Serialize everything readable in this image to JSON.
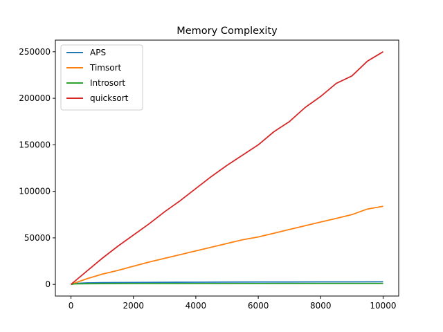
{
  "chart_data": {
    "type": "line",
    "title": "Memory Complexity",
    "xlabel": "",
    "ylabel": "",
    "xlim": [
      -500,
      10500
    ],
    "ylim": [
      -12500,
      262500
    ],
    "xticks": [
      0,
      2000,
      4000,
      6000,
      8000,
      10000
    ],
    "xtick_labels": [
      "0",
      "2000",
      "4000",
      "6000",
      "8000",
      "10000"
    ],
    "yticks": [
      0,
      50000,
      100000,
      150000,
      200000,
      250000
    ],
    "ytick_labels": [
      "0",
      "50000",
      "100000",
      "150000",
      "200000",
      "250000"
    ],
    "grid": false,
    "legend_position": "upper-left",
    "series": [
      {
        "name": "APS",
        "color": "#1f77b4",
        "x": [
          0,
          100,
          200,
          500,
          1000,
          2000,
          3000,
          4000,
          5000,
          6000,
          7000,
          8000,
          9000,
          10000
        ],
        "y": [
          0,
          800,
          1200,
          1600,
          1900,
          2100,
          2300,
          2400,
          2500,
          2600,
          2600,
          2700,
          2700,
          2800
        ]
      },
      {
        "name": "Timsort",
        "color": "#ff7f0e",
        "x": [
          0,
          500,
          1000,
          1500,
          2000,
          2500,
          3000,
          3500,
          4000,
          4500,
          5000,
          5500,
          6000,
          6500,
          7000,
          7500,
          8000,
          8500,
          9000,
          9500,
          10000
        ],
        "y": [
          0,
          6000,
          11000,
          15000,
          19500,
          24000,
          28000,
          32000,
          36000,
          40000,
          44000,
          48000,
          51000,
          55000,
          59000,
          63000,
          67000,
          71000,
          75000,
          81000,
          84000
        ]
      },
      {
        "name": "Introsort",
        "color": "#2ca02c",
        "x": [
          0,
          100,
          500,
          1000,
          2000,
          4000,
          6000,
          8000,
          10000
        ],
        "y": [
          0,
          500,
          700,
          800,
          850,
          900,
          950,
          1000,
          1000
        ]
      },
      {
        "name": "quicksort",
        "color": "#d62728",
        "x": [
          0,
          500,
          1000,
          1500,
          2000,
          2500,
          3000,
          3500,
          4000,
          4500,
          5000,
          5500,
          6000,
          6500,
          7000,
          7500,
          8000,
          8500,
          9000,
          9500,
          10000
        ],
        "y": [
          0,
          14000,
          28000,
          41000,
          53000,
          65000,
          78000,
          90000,
          103000,
          116000,
          128000,
          139000,
          150000,
          164000,
          175000,
          190000,
          202000,
          216000,
          224000,
          240000,
          250000
        ]
      }
    ]
  }
}
